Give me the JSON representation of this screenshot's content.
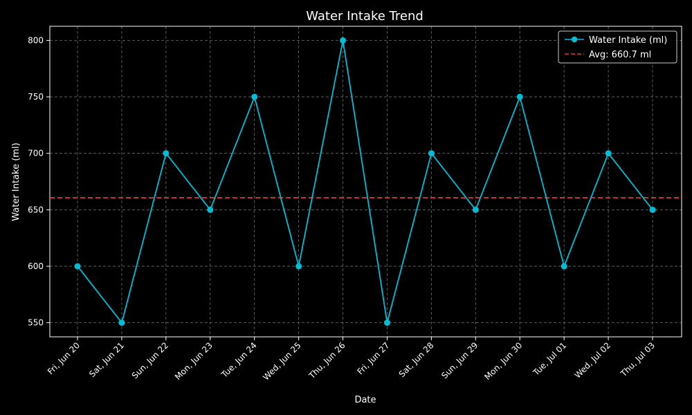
{
  "chart_data": {
    "type": "line",
    "title": "Water Intake Trend",
    "xlabel": "Date",
    "ylabel": "Water Intake (ml)",
    "categories": [
      "Fri, Jun 20",
      "Sat, Jun 21",
      "Sun, Jun 22",
      "Mon, Jun 23",
      "Tue, Jun 24",
      "Wed, Jun 25",
      "Thu, Jun 26",
      "Fri, Jun 27",
      "Sat, Jun 28",
      "Sun, Jun 29",
      "Mon, Jun 30",
      "Tue, Jul 01",
      "Wed, Jul 02",
      "Thu, Jul 03"
    ],
    "series": [
      {
        "name": "Water Intake (ml)",
        "values": [
          600,
          550,
          700,
          650,
          750,
          600,
          800,
          550,
          700,
          650,
          750,
          600,
          700,
          650
        ],
        "color": "#00bcd4"
      }
    ],
    "reference_line": {
      "label": "Avg: 660.7 ml",
      "value": 660.7,
      "color": "#e53935",
      "style": "dashed"
    },
    "ylim": [
      537.5,
      812.5
    ],
    "yticks": [
      550,
      600,
      650,
      700,
      750,
      800
    ],
    "grid": true,
    "legend_position": "top-right",
    "background": "#000000",
    "foreground": "#ffffff"
  }
}
